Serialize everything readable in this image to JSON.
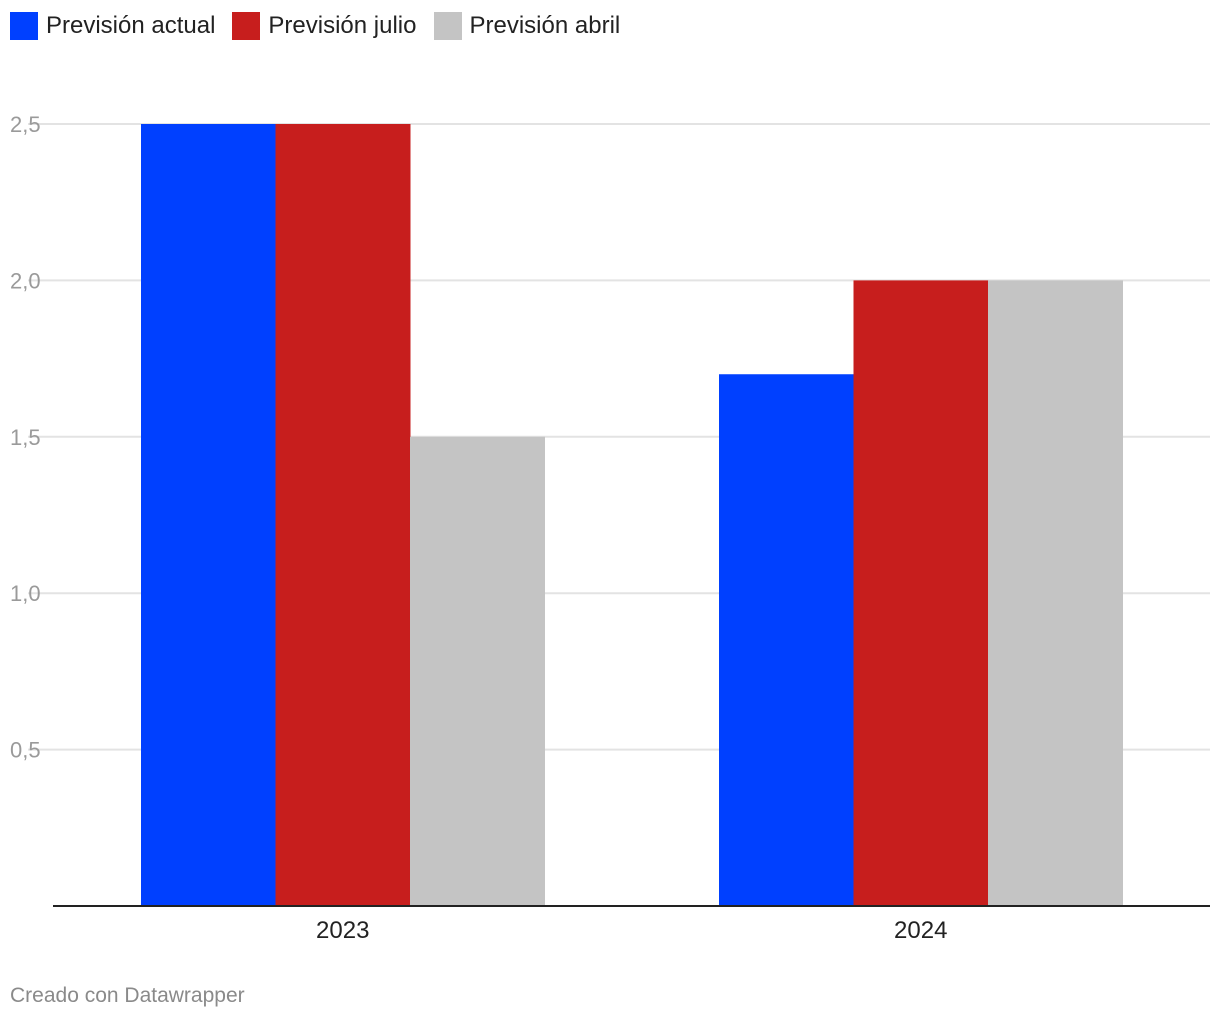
{
  "chart_data": {
    "type": "bar",
    "categories": [
      "2023",
      "2024"
    ],
    "series": [
      {
        "name": "Previsión actual",
        "values": [
          2.5,
          1.7
        ],
        "color": "#0040ff"
      },
      {
        "name": "Previsión julio",
        "values": [
          2.5,
          2.0
        ],
        "color": "#c71e1d"
      },
      {
        "name": "Previsión abril",
        "values": [
          1.5,
          2.0
        ],
        "color": "#c4c4c4"
      }
    ],
    "yticks": [
      {
        "value": 0.5,
        "label": "0,5"
      },
      {
        "value": 1.0,
        "label": "1,0"
      },
      {
        "value": 1.5,
        "label": "1,5"
      },
      {
        "value": 2.0,
        "label": "2,0"
      },
      {
        "value": 2.5,
        "label": "2,5"
      }
    ],
    "ylim": [
      0,
      2.5
    ],
    "grid": true,
    "legend_position": "top-left",
    "title": "",
    "xlabel": "",
    "ylabel": ""
  },
  "footer": {
    "credit": "Creado con Datawrapper"
  }
}
